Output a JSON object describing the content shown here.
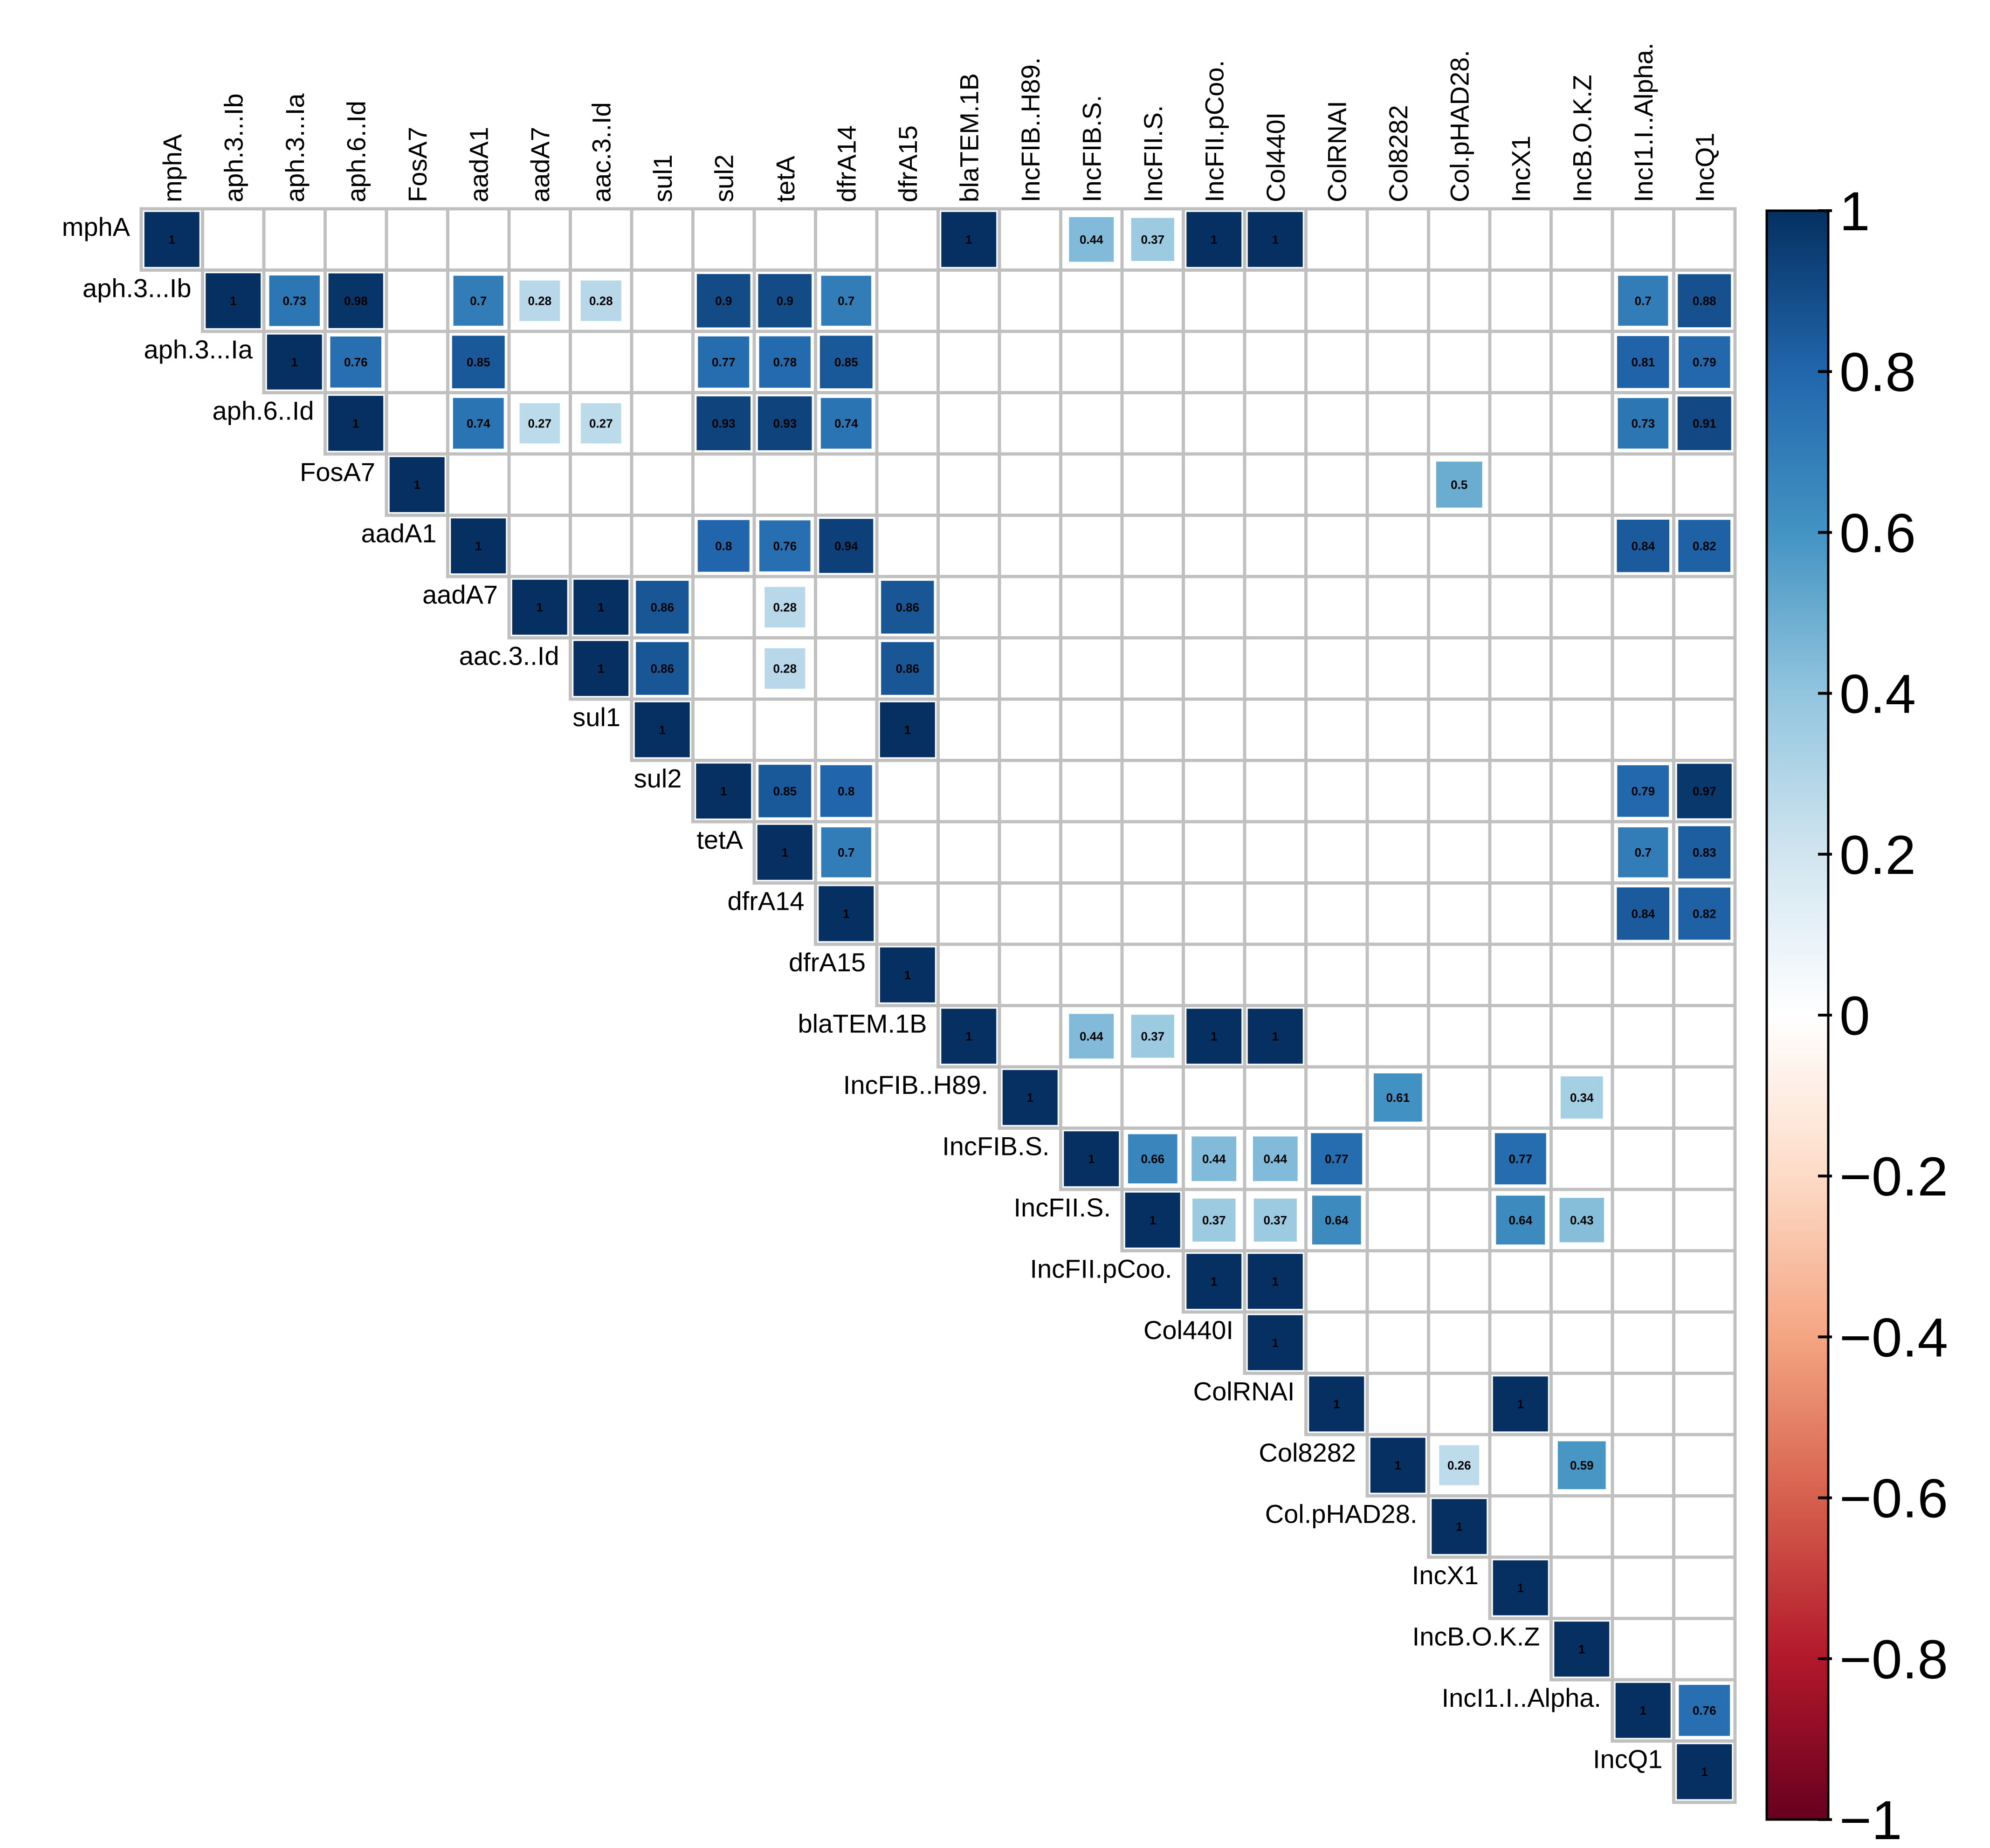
{
  "chart_data": {
    "type": "heatmap",
    "title": "",
    "shape": "upper-triangle",
    "cell_style": "square",
    "variables": [
      "mphA",
      "aph.3...Ib",
      "aph.3...Ia",
      "aph.6..Id",
      "FosA7",
      "aadA1",
      "aadA7",
      "aac.3..Id",
      "sul1",
      "sul2",
      "tetA",
      "dfrA14",
      "dfrA15",
      "blaTEM.1B",
      "IncFIB..H89.",
      "IncFIB.S.",
      "IncFII.S.",
      "IncFII.pCoo.",
      "Col440I",
      "ColRNAI",
      "Col8282",
      "Col.pHAD28.",
      "IncX1",
      "IncB.O.K.Z",
      "IncI1.I..Alpha.",
      "IncQ1"
    ],
    "cells": [
      {
        "row": "mphA",
        "col": "mphA",
        "value": 1
      },
      {
        "row": "mphA",
        "col": "blaTEM.1B",
        "value": 1
      },
      {
        "row": "mphA",
        "col": "IncFIB.S.",
        "value": 0.44
      },
      {
        "row": "mphA",
        "col": "IncFII.S.",
        "value": 0.37
      },
      {
        "row": "mphA",
        "col": "IncFII.pCoo.",
        "value": 1
      },
      {
        "row": "mphA",
        "col": "Col440I",
        "value": 1
      },
      {
        "row": "aph.3...Ib",
        "col": "aph.3...Ib",
        "value": 1
      },
      {
        "row": "aph.3...Ib",
        "col": "aph.3...Ia",
        "value": 0.73
      },
      {
        "row": "aph.3...Ib",
        "col": "aph.6..Id",
        "value": 0.98
      },
      {
        "row": "aph.3...Ib",
        "col": "aadA1",
        "value": 0.7
      },
      {
        "row": "aph.3...Ib",
        "col": "aadA7",
        "value": 0.28
      },
      {
        "row": "aph.3...Ib",
        "col": "aac.3..Id",
        "value": 0.28
      },
      {
        "row": "aph.3...Ib",
        "col": "sul2",
        "value": 0.9
      },
      {
        "row": "aph.3...Ib",
        "col": "tetA",
        "value": 0.9
      },
      {
        "row": "aph.3...Ib",
        "col": "dfrA14",
        "value": 0.7
      },
      {
        "row": "aph.3...Ib",
        "col": "IncI1.I..Alpha.",
        "value": 0.7
      },
      {
        "row": "aph.3...Ib",
        "col": "IncQ1",
        "value": 0.88
      },
      {
        "row": "aph.3...Ia",
        "col": "aph.3...Ia",
        "value": 1
      },
      {
        "row": "aph.3...Ia",
        "col": "aph.6..Id",
        "value": 0.76
      },
      {
        "row": "aph.3...Ia",
        "col": "aadA1",
        "value": 0.85
      },
      {
        "row": "aph.3...Ia",
        "col": "sul2",
        "value": 0.77
      },
      {
        "row": "aph.3...Ia",
        "col": "tetA",
        "value": 0.78
      },
      {
        "row": "aph.3...Ia",
        "col": "dfrA14",
        "value": 0.85
      },
      {
        "row": "aph.3...Ia",
        "col": "IncI1.I..Alpha.",
        "value": 0.81
      },
      {
        "row": "aph.3...Ia",
        "col": "IncQ1",
        "value": 0.79
      },
      {
        "row": "aph.6..Id",
        "col": "aph.6..Id",
        "value": 1
      },
      {
        "row": "aph.6..Id",
        "col": "aadA1",
        "value": 0.74
      },
      {
        "row": "aph.6..Id",
        "col": "aadA7",
        "value": 0.27
      },
      {
        "row": "aph.6..Id",
        "col": "aac.3..Id",
        "value": 0.27
      },
      {
        "row": "aph.6..Id",
        "col": "sul2",
        "value": 0.93
      },
      {
        "row": "aph.6..Id",
        "col": "tetA",
        "value": 0.93
      },
      {
        "row": "aph.6..Id",
        "col": "dfrA14",
        "value": 0.74
      },
      {
        "row": "aph.6..Id",
        "col": "IncI1.I..Alpha.",
        "value": 0.73
      },
      {
        "row": "aph.6..Id",
        "col": "IncQ1",
        "value": 0.91
      },
      {
        "row": "FosA7",
        "col": "FosA7",
        "value": 1
      },
      {
        "row": "FosA7",
        "col": "Col.pHAD28.",
        "value": 0.5
      },
      {
        "row": "aadA1",
        "col": "aadA1",
        "value": 1
      },
      {
        "row": "aadA1",
        "col": "sul2",
        "value": 0.8
      },
      {
        "row": "aadA1",
        "col": "tetA",
        "value": 0.76
      },
      {
        "row": "aadA1",
        "col": "dfrA14",
        "value": 0.94
      },
      {
        "row": "aadA1",
        "col": "IncI1.I..Alpha.",
        "value": 0.84
      },
      {
        "row": "aadA1",
        "col": "IncQ1",
        "value": 0.82
      },
      {
        "row": "aadA7",
        "col": "aadA7",
        "value": 1
      },
      {
        "row": "aadA7",
        "col": "aac.3..Id",
        "value": 1
      },
      {
        "row": "aadA7",
        "col": "sul1",
        "value": 0.86
      },
      {
        "row": "aadA7",
        "col": "tetA",
        "value": 0.28
      },
      {
        "row": "aadA7",
        "col": "dfrA15",
        "value": 0.86
      },
      {
        "row": "aac.3..Id",
        "col": "aac.3..Id",
        "value": 1
      },
      {
        "row": "aac.3..Id",
        "col": "sul1",
        "value": 0.86
      },
      {
        "row": "aac.3..Id",
        "col": "tetA",
        "value": 0.28
      },
      {
        "row": "aac.3..Id",
        "col": "dfrA15",
        "value": 0.86
      },
      {
        "row": "sul1",
        "col": "sul1",
        "value": 1
      },
      {
        "row": "sul1",
        "col": "dfrA15",
        "value": 1
      },
      {
        "row": "sul2",
        "col": "sul2",
        "value": 1
      },
      {
        "row": "sul2",
        "col": "tetA",
        "value": 0.85
      },
      {
        "row": "sul2",
        "col": "dfrA14",
        "value": 0.8
      },
      {
        "row": "sul2",
        "col": "IncI1.I..Alpha.",
        "value": 0.79
      },
      {
        "row": "sul2",
        "col": "IncQ1",
        "value": 0.97
      },
      {
        "row": "tetA",
        "col": "tetA",
        "value": 1
      },
      {
        "row": "tetA",
        "col": "dfrA14",
        "value": 0.7
      },
      {
        "row": "tetA",
        "col": "IncI1.I..Alpha.",
        "value": 0.7
      },
      {
        "row": "tetA",
        "col": "IncQ1",
        "value": 0.83
      },
      {
        "row": "dfrA14",
        "col": "dfrA14",
        "value": 1
      },
      {
        "row": "dfrA14",
        "col": "IncI1.I..Alpha.",
        "value": 0.84
      },
      {
        "row": "dfrA14",
        "col": "IncQ1",
        "value": 0.82
      },
      {
        "row": "dfrA15",
        "col": "dfrA15",
        "value": 1
      },
      {
        "row": "blaTEM.1B",
        "col": "blaTEM.1B",
        "value": 1
      },
      {
        "row": "blaTEM.1B",
        "col": "IncFIB.S.",
        "value": 0.44
      },
      {
        "row": "blaTEM.1B",
        "col": "IncFII.S.",
        "value": 0.37
      },
      {
        "row": "blaTEM.1B",
        "col": "IncFII.pCoo.",
        "value": 1
      },
      {
        "row": "blaTEM.1B",
        "col": "Col440I",
        "value": 1
      },
      {
        "row": "IncFIB..H89.",
        "col": "IncFIB..H89.",
        "value": 1
      },
      {
        "row": "IncFIB..H89.",
        "col": "Col8282",
        "value": 0.61
      },
      {
        "row": "IncFIB..H89.",
        "col": "IncB.O.K.Z",
        "value": 0.34
      },
      {
        "row": "IncFIB.S.",
        "col": "IncFIB.S.",
        "value": 1
      },
      {
        "row": "IncFIB.S.",
        "col": "IncFII.S.",
        "value": 0.66
      },
      {
        "row": "IncFIB.S.",
        "col": "IncFII.pCoo.",
        "value": 0.44
      },
      {
        "row": "IncFIB.S.",
        "col": "Col440I",
        "value": 0.44
      },
      {
        "row": "IncFIB.S.",
        "col": "ColRNAI",
        "value": 0.77
      },
      {
        "row": "IncFIB.S.",
        "col": "IncX1",
        "value": 0.77
      },
      {
        "row": "IncFII.S.",
        "col": "IncFII.S.",
        "value": 1
      },
      {
        "row": "IncFII.S.",
        "col": "IncFII.pCoo.",
        "value": 0.37
      },
      {
        "row": "IncFII.S.",
        "col": "Col440I",
        "value": 0.37
      },
      {
        "row": "IncFII.S.",
        "col": "ColRNAI",
        "value": 0.64
      },
      {
        "row": "IncFII.S.",
        "col": "IncX1",
        "value": 0.64
      },
      {
        "row": "IncFII.S.",
        "col": "IncB.O.K.Z",
        "value": 0.43
      },
      {
        "row": "IncFII.pCoo.",
        "col": "IncFII.pCoo.",
        "value": 1
      },
      {
        "row": "IncFII.pCoo.",
        "col": "Col440I",
        "value": 1
      },
      {
        "row": "Col440I",
        "col": "Col440I",
        "value": 1
      },
      {
        "row": "ColRNAI",
        "col": "ColRNAI",
        "value": 1
      },
      {
        "row": "ColRNAI",
        "col": "IncX1",
        "value": 1
      },
      {
        "row": "Col8282",
        "col": "Col8282",
        "value": 1
      },
      {
        "row": "Col8282",
        "col": "Col.pHAD28.",
        "value": 0.26
      },
      {
        "row": "Col8282",
        "col": "IncB.O.K.Z",
        "value": 0.59
      },
      {
        "row": "Col.pHAD28.",
        "col": "Col.pHAD28.",
        "value": 1
      },
      {
        "row": "IncX1",
        "col": "IncX1",
        "value": 1
      },
      {
        "row": "IncB.O.K.Z",
        "col": "IncB.O.K.Z",
        "value": 1
      },
      {
        "row": "IncI1.I..Alpha.",
        "col": "IncI1.I..Alpha.",
        "value": 1
      },
      {
        "row": "IncI1.I..Alpha.",
        "col": "IncQ1",
        "value": 0.76
      },
      {
        "row": "IncQ1",
        "col": "IncQ1",
        "value": 1
      }
    ],
    "colorbar": {
      "range": [
        -1,
        1
      ],
      "ticks": [
        1,
        0.8,
        0.6,
        0.4,
        0.2,
        0,
        -0.2,
        -0.4,
        -0.6,
        -0.8,
        -1
      ],
      "tick_labels": [
        "1",
        "0.8",
        "0.6",
        "0.4",
        "0.2",
        "0",
        "−0.2",
        "−0.4",
        "−0.6",
        "−0.8",
        "−1"
      ],
      "colors": [
        "#67001f",
        "#b2182b",
        "#d6604d",
        "#f4a582",
        "#fddbc7",
        "#ffffff",
        "#d1e5f0",
        "#92c5de",
        "#4393c3",
        "#2166ac",
        "#053061"
      ],
      "grid_color": "#c0c0c0"
    }
  }
}
